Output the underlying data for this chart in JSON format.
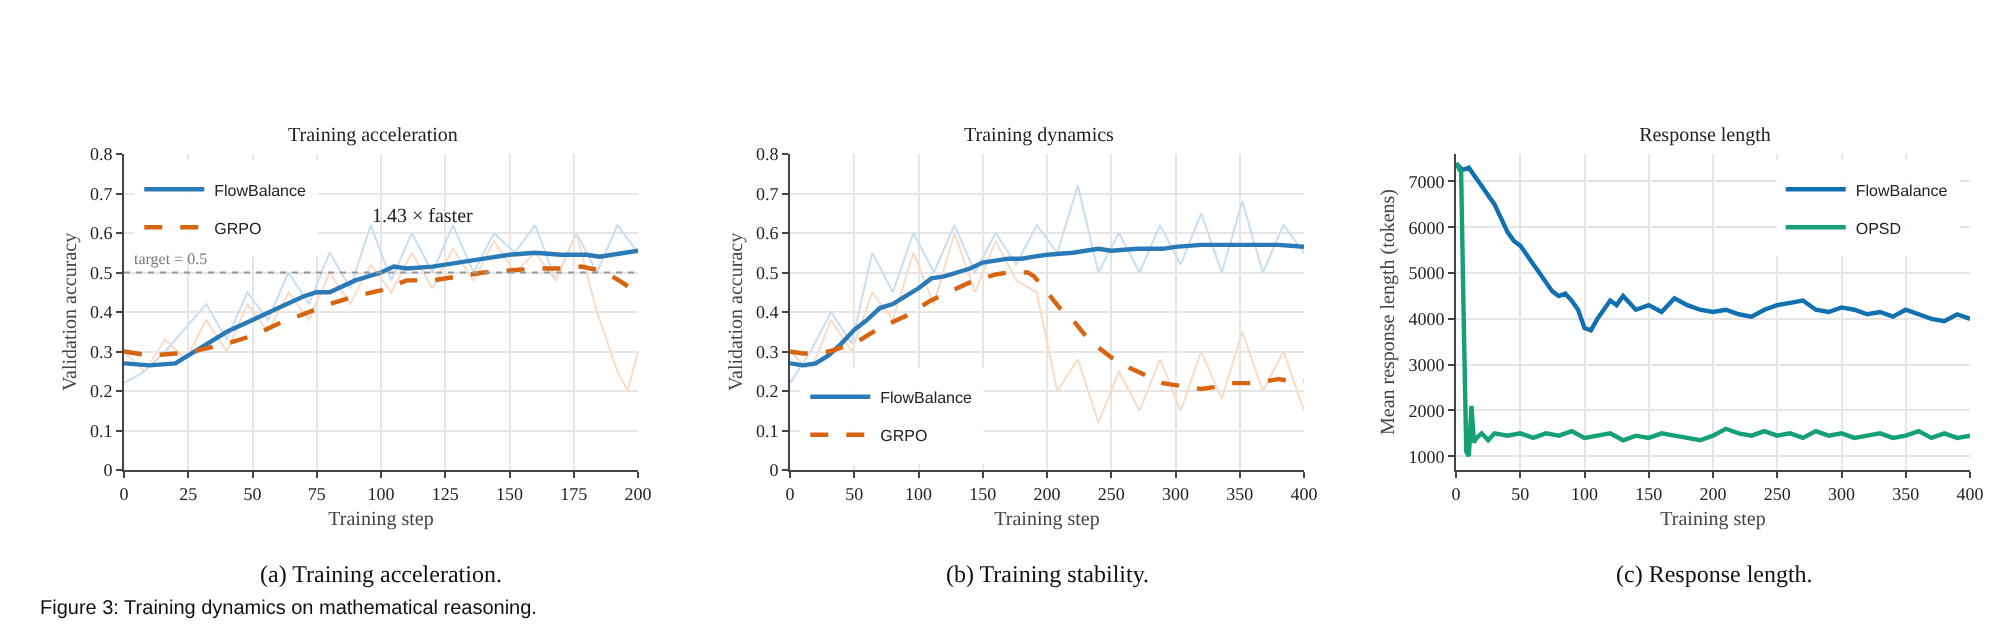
{
  "chart_data": [
    {
      "type": "line",
      "title": "Training acceleration",
      "xlabel": "Training step",
      "ylabel": "Validation accuracy",
      "xlim": [
        0,
        200
      ],
      "xticks": [
        0,
        25,
        50,
        75,
        100,
        125,
        150,
        175,
        200
      ],
      "ylim": [
        0,
        0.8
      ],
      "yticks": [
        0.0,
        0.1,
        0.2,
        0.3,
        0.4,
        0.5,
        0.6,
        0.7,
        0.8
      ],
      "grid": true,
      "legend": "top left",
      "series": [
        {
          "color": "#c9def0",
          "x": [
            0,
            8,
            16,
            24,
            32,
            40,
            48,
            56,
            64,
            72,
            80,
            88,
            96,
            104,
            112,
            120,
            128,
            136,
            144,
            152,
            160,
            168,
            176,
            184,
            192,
            200
          ],
          "values": [
            0.22,
            0.25,
            0.3,
            0.36,
            0.42,
            0.33,
            0.45,
            0.38,
            0.5,
            0.42,
            0.55,
            0.46,
            0.62,
            0.48,
            0.6,
            0.5,
            0.62,
            0.5,
            0.6,
            0.55,
            0.62,
            0.48,
            0.6,
            0.5,
            0.62,
            0.55
          ]
        },
        {
          "color": "#f7dcc8",
          "x": [
            0,
            8,
            16,
            24,
            32,
            40,
            48,
            56,
            64,
            72,
            80,
            88,
            96,
            104,
            112,
            120,
            128,
            136,
            144,
            152,
            160,
            168,
            176,
            184,
            192,
            196,
            200
          ],
          "values": [
            0.3,
            0.25,
            0.33,
            0.28,
            0.38,
            0.3,
            0.42,
            0.35,
            0.45,
            0.38,
            0.5,
            0.42,
            0.52,
            0.45,
            0.55,
            0.46,
            0.56,
            0.48,
            0.58,
            0.5,
            0.55,
            0.48,
            0.6,
            0.4,
            0.25,
            0.2,
            0.3
          ]
        },
        {
          "name": "FlowBalance",
          "color": "#2a7ab8",
          "line_style": "solid",
          "x": [
            0,
            10,
            20,
            25,
            30,
            40,
            50,
            60,
            70,
            75,
            80,
            90,
            100,
            105,
            110,
            120,
            130,
            140,
            150,
            160,
            170,
            180,
            185,
            190,
            200
          ],
          "values": [
            0.27,
            0.265,
            0.27,
            0.29,
            0.31,
            0.35,
            0.38,
            0.41,
            0.44,
            0.45,
            0.45,
            0.48,
            0.5,
            0.515,
            0.51,
            0.515,
            0.525,
            0.535,
            0.545,
            0.55,
            0.545,
            0.545,
            0.54,
            0.545,
            0.555
          ]
        },
        {
          "name": "GRPO",
          "color": "#d8640f",
          "line_style": "dashed",
          "x": [
            0,
            10,
            20,
            25,
            30,
            40,
            50,
            60,
            70,
            80,
            90,
            100,
            110,
            120,
            130,
            140,
            150,
            160,
            170,
            178,
            185,
            190,
            195,
            200
          ],
          "values": [
            0.3,
            0.29,
            0.295,
            0.295,
            0.305,
            0.32,
            0.34,
            0.37,
            0.395,
            0.42,
            0.44,
            0.455,
            0.48,
            0.48,
            0.49,
            0.5,
            0.505,
            0.51,
            0.51,
            0.515,
            0.505,
            0.49,
            0.47,
            0.44
          ]
        }
      ],
      "ref_lines": [
        {
          "axis": "y",
          "value": 0.5,
          "label": "target = 0.5",
          "color": "#999999",
          "line_style": "dotted"
        }
      ],
      "annotations": [
        "(a) Training acceleration.",
        "Figure 3: Training dynamics on mathematical reasoning.",
        "1.43 × faster"
      ]
    },
    {
      "type": "line",
      "title": "Training dynamics",
      "xlabel": "Training step",
      "ylabel": "Validation accuracy",
      "xlim": [
        0,
        400
      ],
      "xticks": [
        0,
        50,
        100,
        150,
        200,
        250,
        300,
        350,
        400
      ],
      "ylim": [
        0,
        0.8
      ],
      "yticks": [
        0.0,
        0.1,
        0.2,
        0.3,
        0.4,
        0.5,
        0.6,
        0.7,
        0.8
      ],
      "grid": true,
      "legend": "bottom left",
      "series": [
        {
          "color": "#c9def0",
          "x": [
            0,
            16,
            32,
            48,
            64,
            80,
            96,
            112,
            128,
            144,
            160,
            176,
            192,
            208,
            224,
            240,
            256,
            272,
            288,
            304,
            320,
            336,
            352,
            368,
            384,
            400
          ],
          "values": [
            0.22,
            0.3,
            0.4,
            0.32,
            0.55,
            0.45,
            0.6,
            0.5,
            0.62,
            0.5,
            0.6,
            0.52,
            0.62,
            0.55,
            0.72,
            0.5,
            0.6,
            0.5,
            0.62,
            0.52,
            0.65,
            0.5,
            0.68,
            0.5,
            0.62,
            0.55
          ]
        },
        {
          "color": "#f7dcc8",
          "x": [
            0,
            16,
            32,
            48,
            64,
            80,
            96,
            112,
            128,
            144,
            160,
            176,
            192,
            208,
            224,
            240,
            256,
            272,
            288,
            304,
            320,
            336,
            352,
            368,
            384,
            400
          ],
          "values": [
            0.3,
            0.25,
            0.38,
            0.3,
            0.45,
            0.38,
            0.55,
            0.42,
            0.6,
            0.45,
            0.58,
            0.48,
            0.45,
            0.2,
            0.28,
            0.12,
            0.25,
            0.15,
            0.28,
            0.15,
            0.3,
            0.18,
            0.35,
            0.2,
            0.3,
            0.15
          ]
        },
        {
          "name": "FlowBalance",
          "color": "#2a7ab8",
          "line_style": "solid",
          "x": [
            0,
            10,
            20,
            30,
            40,
            50,
            60,
            70,
            80,
            90,
            100,
            110,
            120,
            130,
            140,
            150,
            160,
            170,
            180,
            190,
            200,
            220,
            240,
            250,
            270,
            290,
            300,
            320,
            340,
            360,
            380,
            400
          ],
          "values": [
            0.27,
            0.265,
            0.27,
            0.29,
            0.32,
            0.355,
            0.38,
            0.41,
            0.42,
            0.44,
            0.46,
            0.485,
            0.49,
            0.5,
            0.51,
            0.525,
            0.53,
            0.535,
            0.535,
            0.54,
            0.545,
            0.55,
            0.56,
            0.555,
            0.56,
            0.56,
            0.565,
            0.57,
            0.57,
            0.57,
            0.57,
            0.565
          ]
        },
        {
          "name": "GRPO",
          "color": "#d8640f",
          "line_style": "dashed",
          "x": [
            0,
            10,
            20,
            30,
            40,
            50,
            60,
            70,
            80,
            90,
            100,
            110,
            120,
            130,
            140,
            150,
            160,
            170,
            180,
            185,
            190,
            200,
            210,
            220,
            230,
            240,
            250,
            260,
            270,
            280,
            290,
            300,
            310,
            320,
            330,
            340,
            350,
            360,
            370,
            380,
            390,
            400
          ],
          "values": [
            0.3,
            0.295,
            0.295,
            0.3,
            0.31,
            0.32,
            0.34,
            0.36,
            0.375,
            0.39,
            0.41,
            0.43,
            0.445,
            0.46,
            0.475,
            0.485,
            0.495,
            0.5,
            0.5,
            0.5,
            0.49,
            0.45,
            0.41,
            0.38,
            0.34,
            0.31,
            0.285,
            0.265,
            0.25,
            0.235,
            0.22,
            0.215,
            0.21,
            0.205,
            0.21,
            0.22,
            0.22,
            0.22,
            0.225,
            0.23,
            0.225,
            0.225
          ]
        }
      ],
      "annotations": [
        "(b) Training stability."
      ]
    },
    {
      "type": "line",
      "title": "Response length",
      "xlabel": "Training step",
      "ylabel": "Mean response length (tokens)",
      "xlim": [
        0,
        400
      ],
      "xticks": [
        0,
        50,
        100,
        150,
        200,
        250,
        300,
        350,
        400
      ],
      "ylim": [
        700,
        7600
      ],
      "yticks": [
        1000,
        2000,
        3000,
        4000,
        5000,
        6000,
        7000
      ],
      "grid": true,
      "legend": "top right",
      "series": [
        {
          "name": "FlowBalance",
          "color": "#1170b0",
          "line_style": "solid",
          "x": [
            0,
            5,
            10,
            15,
            20,
            25,
            30,
            35,
            40,
            45,
            50,
            55,
            60,
            65,
            70,
            75,
            80,
            85,
            90,
            95,
            100,
            105,
            110,
            115,
            120,
            125,
            130,
            140,
            150,
            160,
            170,
            180,
            190,
            200,
            210,
            220,
            230,
            240,
            250,
            260,
            270,
            280,
            290,
            300,
            310,
            320,
            330,
            340,
            350,
            360,
            370,
            380,
            390,
            400
          ],
          "values": [
            7400,
            7250,
            7300,
            7100,
            6900,
            6700,
            6500,
            6200,
            5900,
            5700,
            5600,
            5400,
            5200,
            5000,
            4800,
            4600,
            4500,
            4550,
            4400,
            4200,
            3800,
            3750,
            4000,
            4200,
            4400,
            4300,
            4500,
            4200,
            4300,
            4150,
            4450,
            4300,
            4200,
            4150,
            4200,
            4100,
            4050,
            4200,
            4300,
            4350,
            4400,
            4200,
            4150,
            4250,
            4200,
            4100,
            4150,
            4050,
            4200,
            4100,
            4000,
            3950,
            4100,
            4000
          ]
        },
        {
          "name": "OPSD",
          "color": "#16a077",
          "line_style": "solid",
          "x": [
            0,
            4,
            6,
            8,
            10,
            12,
            14,
            16,
            20,
            25,
            30,
            40,
            50,
            60,
            70,
            80,
            90,
            100,
            110,
            120,
            130,
            140,
            150,
            160,
            170,
            180,
            190,
            200,
            210,
            220,
            230,
            240,
            250,
            260,
            270,
            280,
            290,
            300,
            310,
            320,
            330,
            340,
            350,
            360,
            370,
            380,
            390,
            400
          ],
          "values": [
            7400,
            7200,
            4000,
            1100,
            1000,
            2100,
            1300,
            1400,
            1500,
            1350,
            1500,
            1450,
            1500,
            1400,
            1500,
            1450,
            1550,
            1400,
            1450,
            1500,
            1350,
            1450,
            1400,
            1500,
            1450,
            1400,
            1350,
            1450,
            1600,
            1500,
            1450,
            1550,
            1450,
            1500,
            1400,
            1550,
            1450,
            1500,
            1400,
            1450,
            1500,
            1400,
            1450,
            1550,
            1400,
            1500,
            1400,
            1450
          ]
        }
      ],
      "annotations": [
        "(c) Response length."
      ]
    }
  ]
}
